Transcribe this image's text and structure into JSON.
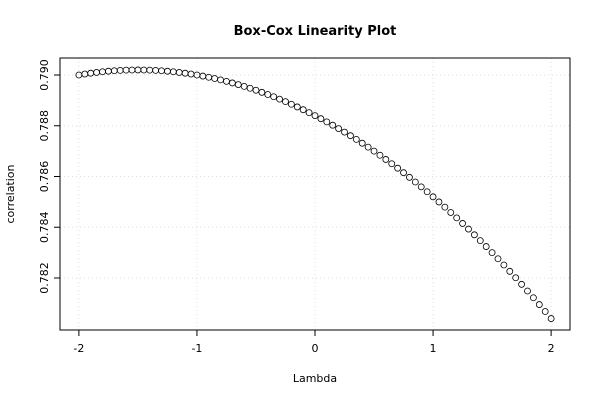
{
  "chart_data": {
    "type": "scatter",
    "title": "Box-Cox Linearity Plot",
    "x_label": "Lambda",
    "y_label": "correlation",
    "x": [
      -2,
      -1.95,
      -1.9,
      -1.85,
      -1.8,
      -1.75,
      -1.7,
      -1.65,
      -1.6,
      -1.55,
      -1.5,
      -1.45,
      -1.4,
      -1.35,
      -1.3,
      -1.25,
      -1.2,
      -1.15,
      -1.1,
      -1.05,
      -1,
      -0.95,
      -0.9,
      -0.85,
      -0.8,
      -0.75,
      -0.7,
      -0.65,
      -0.6,
      -0.55,
      -0.5,
      -0.45,
      -0.4,
      -0.35,
      -0.3,
      -0.25,
      -0.2,
      -0.15,
      -0.1,
      -0.05,
      0,
      0.05,
      0.1,
      0.15,
      0.2,
      0.25,
      0.3,
      0.35,
      0.4,
      0.45,
      0.5,
      0.55,
      0.6,
      0.65,
      0.7,
      0.75,
      0.8,
      0.85,
      0.9,
      0.95,
      1,
      1.05,
      1.1,
      1.15,
      1.2,
      1.25,
      1.3,
      1.35,
      1.4,
      1.45,
      1.5,
      1.55,
      1.6,
      1.65,
      1.7,
      1.75,
      1.8,
      1.85,
      1.9,
      1.95,
      2
    ],
    "values": [
      0.79,
      0.790038,
      0.790072,
      0.790102,
      0.790128,
      0.79015,
      0.790168,
      0.790182,
      0.790192,
      0.790198,
      0.7902,
      0.790198,
      0.790192,
      0.790182,
      0.790168,
      0.79015,
      0.790128,
      0.790102,
      0.790072,
      0.790038,
      0.79,
      0.789958,
      0.789912,
      0.789862,
      0.789808,
      0.78975,
      0.789688,
      0.789622,
      0.789552,
      0.789478,
      0.7894,
      0.789318,
      0.789232,
      0.789142,
      0.789048,
      0.78895,
      0.788848,
      0.788742,
      0.788632,
      0.788518,
      0.7884,
      0.788278,
      0.788152,
      0.788022,
      0.787888,
      0.78775,
      0.787608,
      0.787462,
      0.787312,
      0.787158,
      0.787,
      0.786838,
      0.786672,
      0.786502,
      0.786328,
      0.78615,
      0.785968,
      0.785782,
      0.785592,
      0.785398,
      0.7852,
      0.784998,
      0.784792,
      0.784582,
      0.784368,
      0.78415,
      0.783928,
      0.783702,
      0.783472,
      0.783238,
      0.783,
      0.782758,
      0.782512,
      0.782262,
      0.782008,
      0.78175,
      0.781488,
      0.781222,
      0.780952,
      0.780678,
      0.7804
    ],
    "color": "#000000",
    "xlim": [
      -2.16,
      2.16
    ],
    "xticks": [
      -2,
      -1,
      0,
      1,
      2
    ],
    "ylim": [
      0.77995,
      0.79067
    ],
    "yticks": [
      0.782,
      0.784,
      0.786,
      0.788,
      {
        "value": 0.79,
        "label": "0.790"
      }
    ],
    "grid": true
  }
}
